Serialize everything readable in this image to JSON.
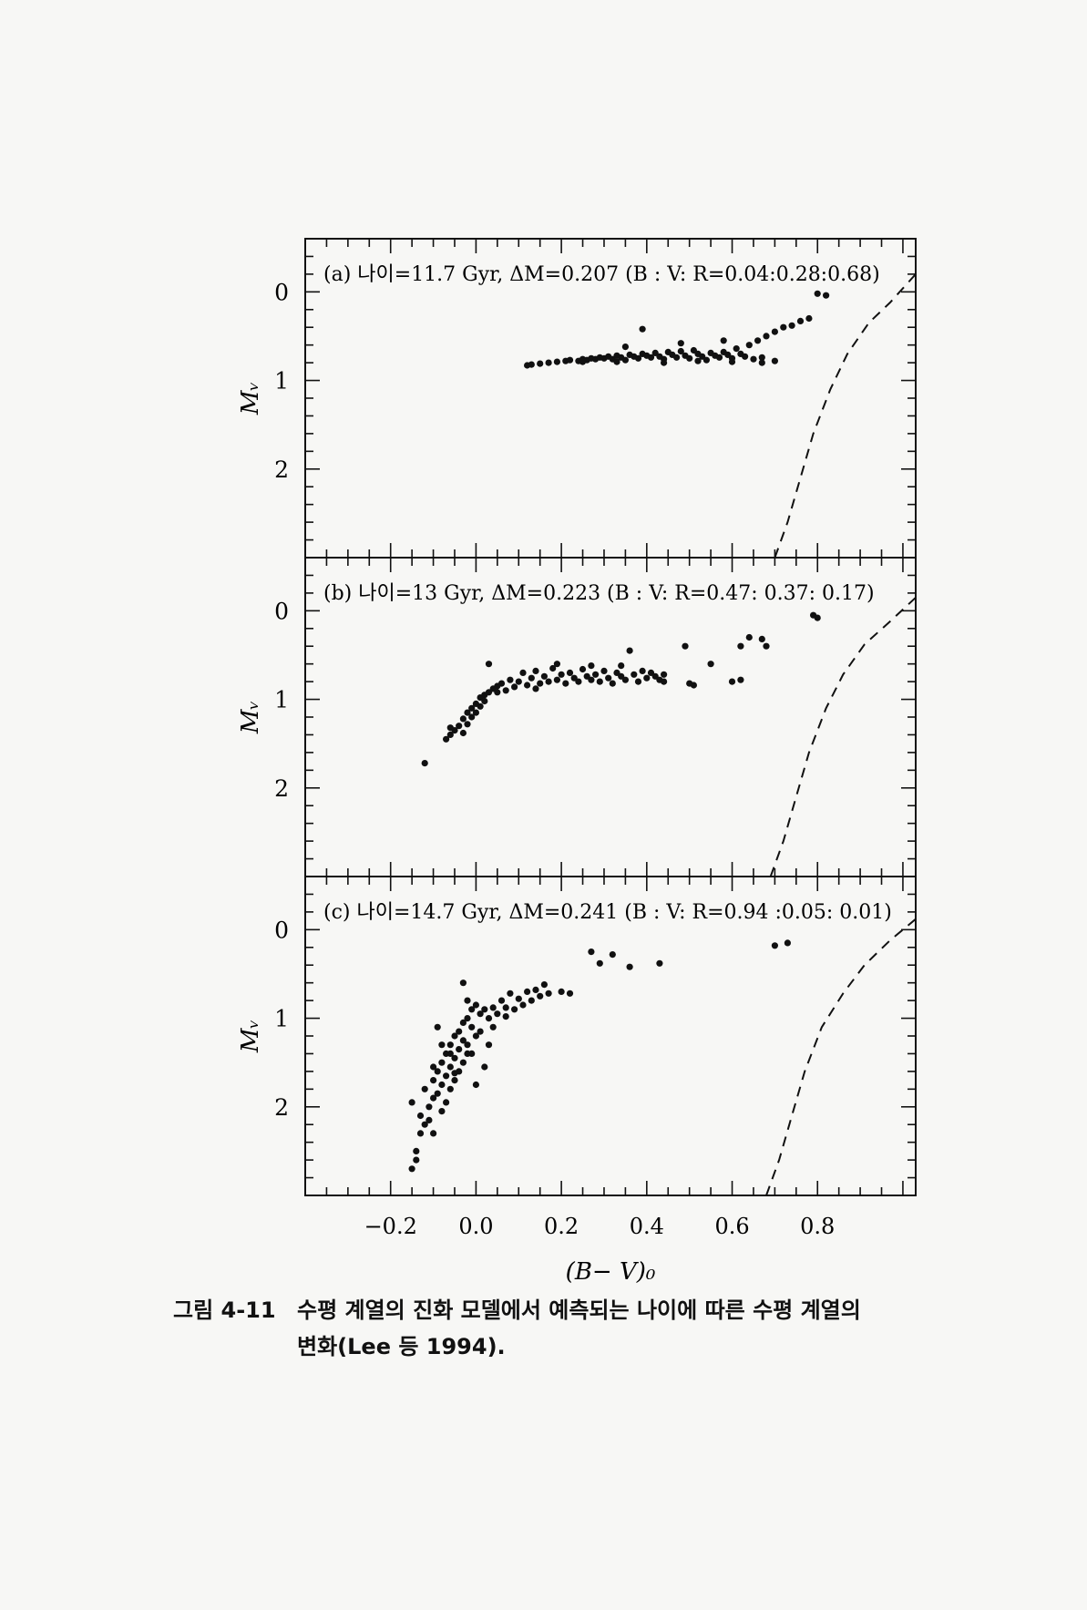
{
  "chart_data": [
    {
      "type": "scatter",
      "panel": "a",
      "title": "(a) 나이=11.7 Gyr, ΔM=0.207 (B : V: R=0.04:0.28:0.68)",
      "ylabel": "Mᵥ",
      "xlim": [
        -0.4,
        1.03
      ],
      "ylim": [
        3.0,
        -0.6
      ],
      "yticks": [
        0,
        1,
        2
      ],
      "points": [
        [
          0.12,
          0.83
        ],
        [
          0.13,
          0.82
        ],
        [
          0.15,
          0.81
        ],
        [
          0.17,
          0.8
        ],
        [
          0.19,
          0.79
        ],
        [
          0.21,
          0.78
        ],
        [
          0.22,
          0.77
        ],
        [
          0.24,
          0.78
        ],
        [
          0.25,
          0.76
        ],
        [
          0.26,
          0.77
        ],
        [
          0.27,
          0.75
        ],
        [
          0.28,
          0.76
        ],
        [
          0.29,
          0.74
        ],
        [
          0.3,
          0.75
        ],
        [
          0.31,
          0.73
        ],
        [
          0.32,
          0.76
        ],
        [
          0.33,
          0.72
        ],
        [
          0.34,
          0.74
        ],
        [
          0.35,
          0.77
        ],
        [
          0.36,
          0.71
        ],
        [
          0.37,
          0.73
        ],
        [
          0.38,
          0.75
        ],
        [
          0.39,
          0.7
        ],
        [
          0.4,
          0.72
        ],
        [
          0.41,
          0.74
        ],
        [
          0.42,
          0.69
        ],
        [
          0.43,
          0.73
        ],
        [
          0.44,
          0.76
        ],
        [
          0.45,
          0.68
        ],
        [
          0.46,
          0.71
        ],
        [
          0.47,
          0.74
        ],
        [
          0.48,
          0.67
        ],
        [
          0.49,
          0.72
        ],
        [
          0.5,
          0.75
        ],
        [
          0.51,
          0.66
        ],
        [
          0.52,
          0.7
        ],
        [
          0.53,
          0.73
        ],
        [
          0.54,
          0.77
        ],
        [
          0.55,
          0.69
        ],
        [
          0.56,
          0.72
        ],
        [
          0.57,
          0.74
        ],
        [
          0.58,
          0.68
        ],
        [
          0.59,
          0.71
        ],
        [
          0.6,
          0.75
        ],
        [
          0.61,
          0.64
        ],
        [
          0.62,
          0.7
        ],
        [
          0.63,
          0.73
        ],
        [
          0.64,
          0.6
        ],
        [
          0.65,
          0.76
        ],
        [
          0.66,
          0.55
        ],
        [
          0.67,
          0.74
        ],
        [
          0.68,
          0.5
        ],
        [
          0.7,
          0.45
        ],
        [
          0.72,
          0.4
        ],
        [
          0.74,
          0.38
        ],
        [
          0.76,
          0.33
        ],
        [
          0.78,
          0.3
        ],
        [
          0.8,
          0.02
        ],
        [
          0.82,
          0.04
        ],
        [
          0.39,
          0.42
        ],
        [
          0.35,
          0.62
        ],
        [
          0.48,
          0.58
        ],
        [
          0.58,
          0.55
        ],
        [
          0.44,
          0.8
        ],
        [
          0.52,
          0.78
        ],
        [
          0.6,
          0.79
        ],
        [
          0.67,
          0.8
        ],
        [
          0.7,
          0.78
        ],
        [
          0.25,
          0.79
        ],
        [
          0.33,
          0.79
        ]
      ],
      "curve": [
        [
          0.7,
          3.0
        ],
        [
          0.73,
          2.6
        ],
        [
          0.76,
          2.1
        ],
        [
          0.79,
          1.6
        ],
        [
          0.83,
          1.1
        ],
        [
          0.87,
          0.7
        ],
        [
          0.92,
          0.35
        ],
        [
          0.97,
          0.12
        ],
        [
          1.03,
          -0.2
        ]
      ]
    },
    {
      "type": "scatter",
      "panel": "b",
      "title": "(b) 나이=13 Gyr, ΔM=0.223 (B : V: R=0.47: 0.37: 0.17)",
      "ylabel": "Mᵥ",
      "xlim": [
        -0.4,
        1.03
      ],
      "ylim": [
        3.0,
        -0.6
      ],
      "yticks": [
        0,
        1,
        2
      ],
      "points": [
        [
          -0.12,
          1.72
        ],
        [
          -0.07,
          1.45
        ],
        [
          -0.06,
          1.4
        ],
        [
          -0.05,
          1.35
        ],
        [
          -0.04,
          1.3
        ],
        [
          -0.03,
          1.22
        ],
        [
          -0.03,
          1.38
        ],
        [
          -0.02,
          1.15
        ],
        [
          -0.02,
          1.28
        ],
        [
          -0.01,
          1.1
        ],
        [
          -0.01,
          1.2
        ],
        [
          0.0,
          1.05
        ],
        [
          0.0,
          1.15
        ],
        [
          0.01,
          0.98
        ],
        [
          0.01,
          1.08
        ],
        [
          0.02,
          0.95
        ],
        [
          0.02,
          1.02
        ],
        [
          0.03,
          0.6
        ],
        [
          0.03,
          0.92
        ],
        [
          0.04,
          0.88
        ],
        [
          0.05,
          0.85
        ],
        [
          0.06,
          0.82
        ],
        [
          0.07,
          0.9
        ],
        [
          0.08,
          0.78
        ],
        [
          0.09,
          0.86
        ],
        [
          0.1,
          0.8
        ],
        [
          0.11,
          0.7
        ],
        [
          0.12,
          0.84
        ],
        [
          0.13,
          0.76
        ],
        [
          0.14,
          0.68
        ],
        [
          0.15,
          0.82
        ],
        [
          0.16,
          0.74
        ],
        [
          0.17,
          0.8
        ],
        [
          0.18,
          0.65
        ],
        [
          0.19,
          0.78
        ],
        [
          0.2,
          0.72
        ],
        [
          0.21,
          0.82
        ],
        [
          0.22,
          0.7
        ],
        [
          0.23,
          0.76
        ],
        [
          0.24,
          0.8
        ],
        [
          0.25,
          0.66
        ],
        [
          0.26,
          0.74
        ],
        [
          0.27,
          0.78
        ],
        [
          0.28,
          0.72
        ],
        [
          0.29,
          0.8
        ],
        [
          0.3,
          0.68
        ],
        [
          0.31,
          0.76
        ],
        [
          0.32,
          0.82
        ],
        [
          0.33,
          0.7
        ],
        [
          0.34,
          0.74
        ],
        [
          0.35,
          0.78
        ],
        [
          0.36,
          0.45
        ],
        [
          0.37,
          0.72
        ],
        [
          0.38,
          0.8
        ],
        [
          0.39,
          0.68
        ],
        [
          0.4,
          0.76
        ],
        [
          0.41,
          0.7
        ],
        [
          0.42,
          0.74
        ],
        [
          0.43,
          0.78
        ],
        [
          0.44,
          0.72
        ],
        [
          0.44,
          0.8
        ],
        [
          0.49,
          0.4
        ],
        [
          0.5,
          0.82
        ],
        [
          0.51,
          0.84
        ],
        [
          0.55,
          0.6
        ],
        [
          0.6,
          0.8
        ],
        [
          0.62,
          0.78
        ],
        [
          0.62,
          0.4
        ],
        [
          0.64,
          0.3
        ],
        [
          0.67,
          0.32
        ],
        [
          0.68,
          0.4
        ],
        [
          0.79,
          0.05
        ],
        [
          0.8,
          0.08
        ],
        [
          0.34,
          0.62
        ],
        [
          0.27,
          0.62
        ],
        [
          0.19,
          0.6
        ],
        [
          -0.06,
          1.32
        ],
        [
          0.05,
          0.92
        ],
        [
          0.14,
          0.88
        ]
      ],
      "curve": [
        [
          0.69,
          3.0
        ],
        [
          0.72,
          2.6
        ],
        [
          0.75,
          2.1
        ],
        [
          0.78,
          1.6
        ],
        [
          0.82,
          1.1
        ],
        [
          0.86,
          0.72
        ],
        [
          0.91,
          0.38
        ],
        [
          0.97,
          0.12
        ],
        [
          1.03,
          -0.15
        ]
      ]
    },
    {
      "type": "scatter",
      "panel": "c",
      "title": "(c) 나이=14.7 Gyr, ΔM=0.241 (B : V: R=0.94 :0.05: 0.01)",
      "ylabel": "Mᵥ",
      "xlabel": "(B− V)₀",
      "xlim": [
        -0.4,
        1.03
      ],
      "ylim": [
        3.0,
        -0.6
      ],
      "xticks": [
        -0.2,
        0.0,
        0.2,
        0.4,
        0.6,
        0.8
      ],
      "xticklabels": [
        "−0.2",
        "0.0",
        "0.2",
        "0.4",
        "0.6",
        "0.8"
      ],
      "yticks": [
        0,
        1,
        2
      ],
      "points": [
        [
          -0.15,
          2.7
        ],
        [
          -0.14,
          2.6
        ],
        [
          -0.14,
          2.5
        ],
        [
          -0.15,
          1.95
        ],
        [
          -0.13,
          2.3
        ],
        [
          -0.13,
          2.1
        ],
        [
          -0.12,
          2.2
        ],
        [
          -0.12,
          1.8
        ],
        [
          -0.11,
          2.0
        ],
        [
          -0.11,
          2.15
        ],
        [
          -0.1,
          1.7
        ],
        [
          -0.1,
          1.9
        ],
        [
          -0.1,
          2.3
        ],
        [
          -0.09,
          1.6
        ],
        [
          -0.09,
          1.85
        ],
        [
          -0.09,
          1.1
        ],
        [
          -0.08,
          1.5
        ],
        [
          -0.08,
          1.75
        ],
        [
          -0.08,
          2.05
        ],
        [
          -0.07,
          1.4
        ],
        [
          -0.07,
          1.65
        ],
        [
          -0.07,
          1.95
        ],
        [
          -0.06,
          1.3
        ],
        [
          -0.06,
          1.55
        ],
        [
          -0.06,
          1.8
        ],
        [
          -0.05,
          1.2
        ],
        [
          -0.05,
          1.45
        ],
        [
          -0.05,
          1.7
        ],
        [
          -0.04,
          1.15
        ],
        [
          -0.04,
          1.35
        ],
        [
          -0.04,
          1.6
        ],
        [
          -0.03,
          0.6
        ],
        [
          -0.03,
          1.05
        ],
        [
          -0.03,
          1.25
        ],
        [
          -0.03,
          1.5
        ],
        [
          -0.02,
          0.8
        ],
        [
          -0.02,
          1.0
        ],
        [
          -0.02,
          1.3
        ],
        [
          -0.01,
          0.9
        ],
        [
          -0.01,
          1.1
        ],
        [
          -0.01,
          1.4
        ],
        [
          0.0,
          0.85
        ],
        [
          0.0,
          1.2
        ],
        [
          0.0,
          1.75
        ],
        [
          0.01,
          0.95
        ],
        [
          0.01,
          1.15
        ],
        [
          0.02,
          0.9
        ],
        [
          0.02,
          1.55
        ],
        [
          0.03,
          1.0
        ],
        [
          0.04,
          0.88
        ],
        [
          0.05,
          0.95
        ],
        [
          0.06,
          0.8
        ],
        [
          0.07,
          0.88
        ],
        [
          0.08,
          0.72
        ],
        [
          0.09,
          0.9
        ],
        [
          0.1,
          0.78
        ],
        [
          0.11,
          0.85
        ],
        [
          0.12,
          0.7
        ],
        [
          0.13,
          0.8
        ],
        [
          0.14,
          0.68
        ],
        [
          0.15,
          0.75
        ],
        [
          0.16,
          0.62
        ],
        [
          0.17,
          0.72
        ],
        [
          0.2,
          0.7
        ],
        [
          0.22,
          0.72
        ],
        [
          0.27,
          0.25
        ],
        [
          0.29,
          0.38
        ],
        [
          0.32,
          0.28
        ],
        [
          0.36,
          0.42
        ],
        [
          0.43,
          0.38
        ],
        [
          0.7,
          0.18
        ],
        [
          0.73,
          0.15
        ],
        [
          -0.06,
          1.4
        ],
        [
          -0.05,
          1.62
        ],
        [
          -0.02,
          1.4
        ],
        [
          0.03,
          1.3
        ],
        [
          0.07,
          0.98
        ],
        [
          0.04,
          1.1
        ],
        [
          -0.1,
          1.55
        ],
        [
          -0.08,
          1.3
        ]
      ],
      "curve": [
        [
          0.68,
          3.0
        ],
        [
          0.71,
          2.6
        ],
        [
          0.74,
          2.1
        ],
        [
          0.77,
          1.6
        ],
        [
          0.81,
          1.1
        ],
        [
          0.86,
          0.72
        ],
        [
          0.91,
          0.4
        ],
        [
          0.97,
          0.12
        ],
        [
          1.03,
          -0.12
        ]
      ]
    }
  ],
  "caption": {
    "number": "그림 4-11",
    "line1": "수평 계열의 진화 모델에서 예측되는 나이에 따른 수평 계열의",
    "line2": "변화(Lee 등 1994)."
  }
}
